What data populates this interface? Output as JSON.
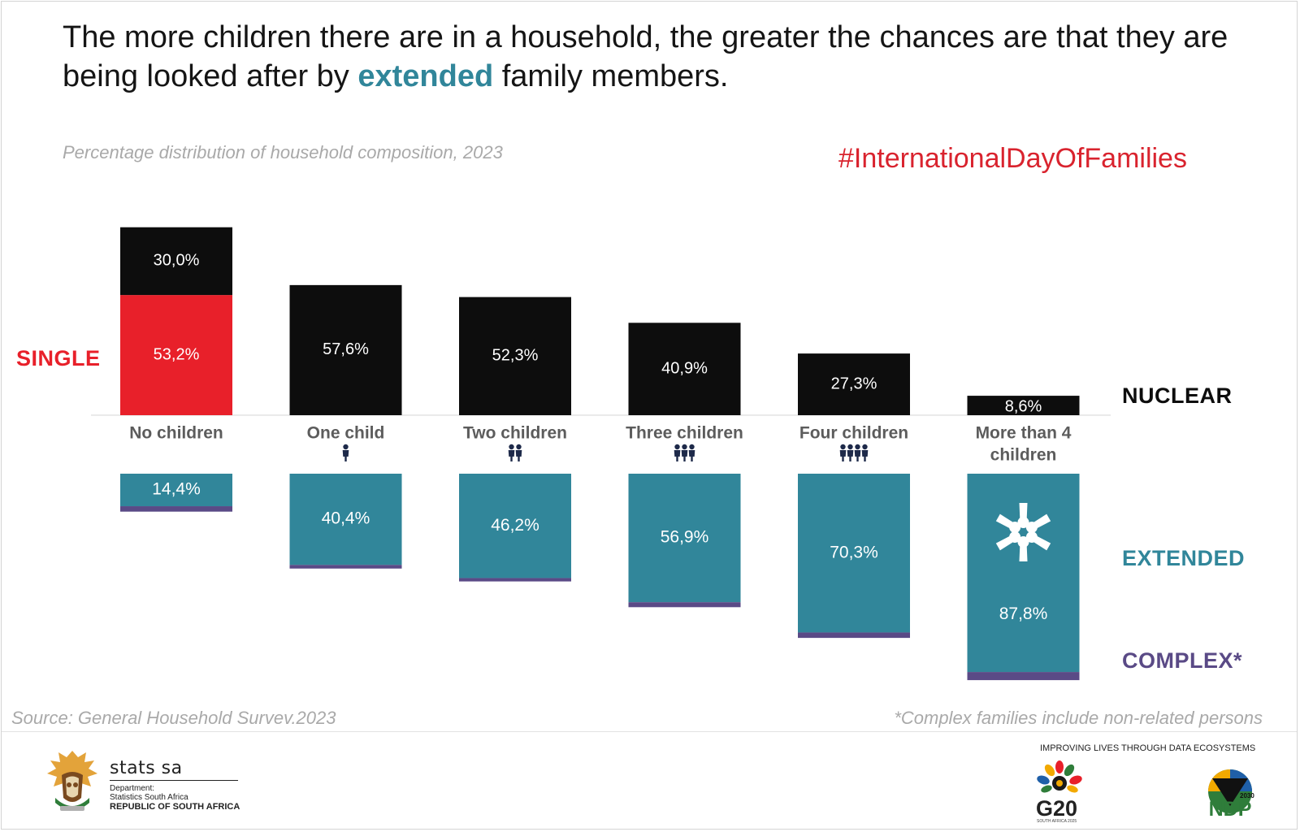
{
  "headline": {
    "before": "The more children there are in a household, the greater the chances are that they are being looked after by ",
    "accent": "extended",
    "after": " family members."
  },
  "subtitle": "Percentage distribution of household composition, 2023",
  "hashtag": "#InternationalDayOfFamilies",
  "source": "Source: General Household Survev.2023",
  "footnote": "*Complex families include non-related persons",
  "colors": {
    "single": "#e8202a",
    "nuclear": "#0d0d0d",
    "extended": "#31869a",
    "complex": "#5a4a86",
    "hashtag": "#d9232e",
    "category_text": "#5c5c5c",
    "axis": "#e4e4e4"
  },
  "chart_data": {
    "type": "bar",
    "categories": [
      "No children",
      "One child",
      "Two children",
      "Three children",
      "Four children",
      "More than 4 children"
    ],
    "category_icons": [
      "",
      "person-icon",
      "two-persons-icon",
      "three-persons-icon",
      "four-persons-icon",
      "hands-circle-icon"
    ],
    "series": [
      {
        "name": "SINGLE",
        "values": [
          53.2,
          null,
          null,
          null,
          null,
          null
        ],
        "labels": [
          "53,2%",
          "",
          "",
          "",
          "",
          ""
        ]
      },
      {
        "name": "NUCLEAR",
        "values": [
          30.0,
          57.6,
          52.3,
          40.9,
          27.3,
          8.6
        ],
        "labels": [
          "30,0%",
          "57,6%",
          "52,3%",
          "40,9%",
          "27,3%",
          "8,6%"
        ]
      },
      {
        "name": "EXTENDED",
        "values": [
          14.4,
          40.4,
          46.2,
          56.9,
          70.3,
          87.8
        ],
        "labels": [
          "14,4%",
          "40,4%",
          "46,2%",
          "56,9%",
          "70,3%",
          "87,8%"
        ]
      },
      {
        "name": "COMPLEX*",
        "values": [
          2.4,
          1.6,
          1.5,
          2.2,
          2.4,
          3.6
        ]
      }
    ],
    "stacking": "single and nuclear stacked above the baseline; extended and complex stacked below the category labels",
    "ylabel": "",
    "xlabel": ""
  },
  "footer": {
    "org_name": "stats sa",
    "dept_line1": "Department:",
    "dept_line2": "Statistics South Africa",
    "dept_line3": "REPUBLIC OF SOUTH AFRICA",
    "tagline": "IMPROVING LIVES THROUGH DATA ECOSYSTEMS",
    "g20": "G20",
    "g20_sub": "SOUTH AFRICA 2025",
    "ndp": "NDP",
    "ndp_year": "2030"
  }
}
